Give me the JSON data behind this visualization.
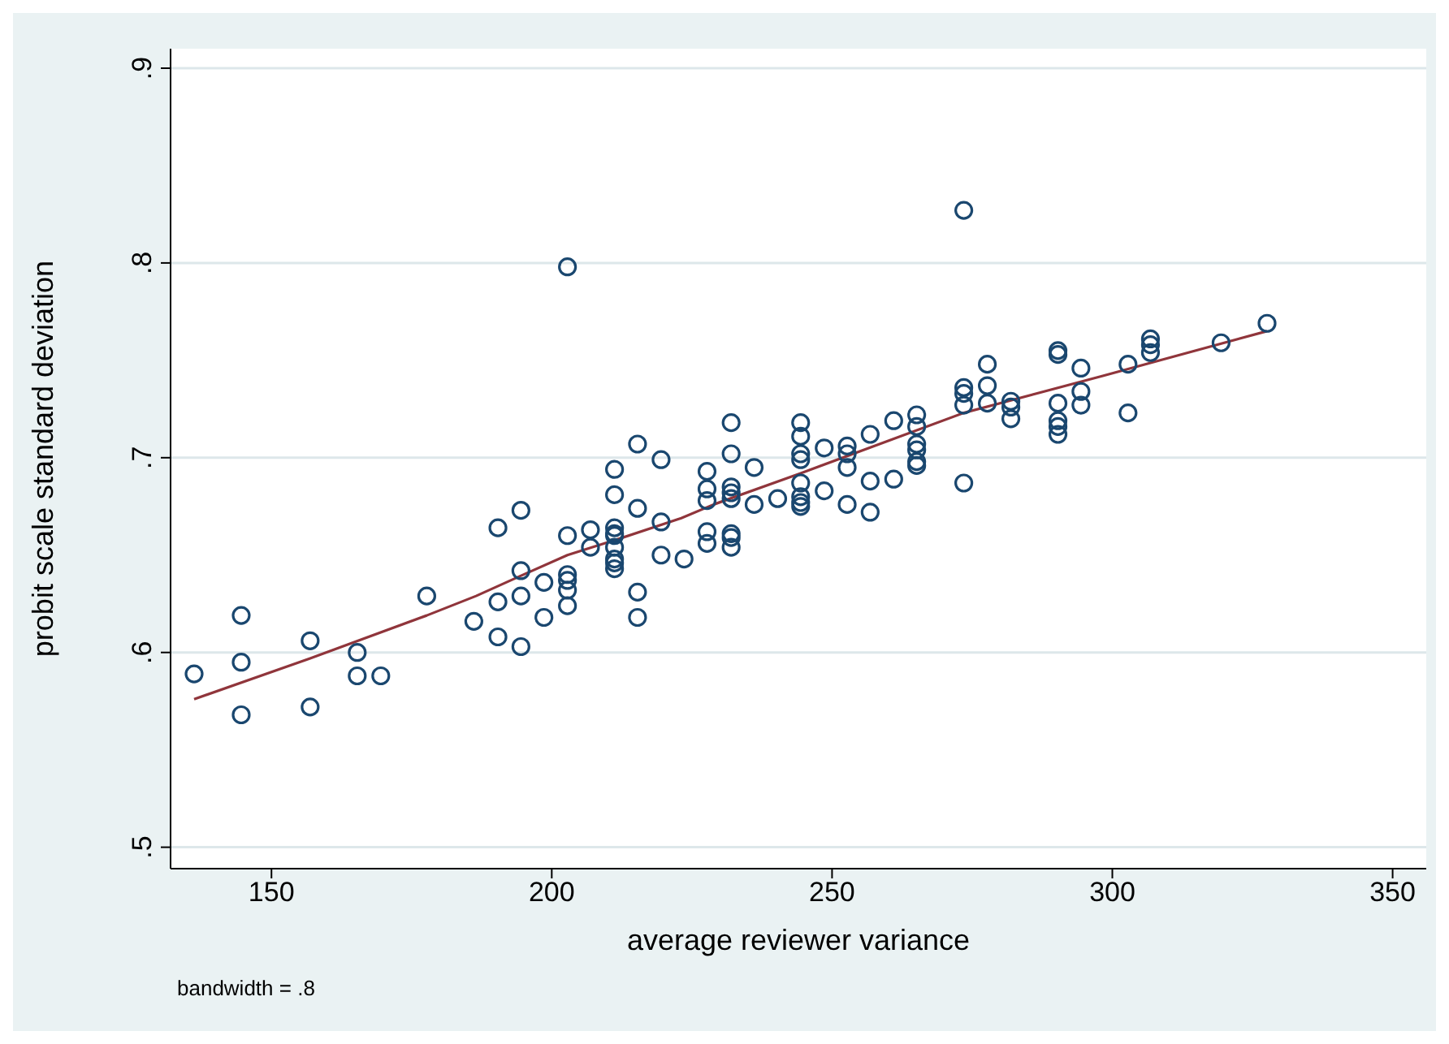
{
  "chart_data": {
    "type": "scatter",
    "xlabel": "average reviewer variance",
    "ylabel": "probit scale standard deviation",
    "annotations": [
      "bandwidth = .8"
    ],
    "xlim": [
      132,
      356
    ],
    "ylim": [
      0.489,
      0.91
    ],
    "xticks": [
      150,
      200,
      250,
      300,
      350
    ],
    "yticks": [
      {
        "value": 0.5,
        "label": ".5"
      },
      {
        "value": 0.6,
        "label": ".6"
      },
      {
        "value": 0.7,
        "label": ".7"
      },
      {
        "value": 0.8,
        "label": ".8"
      },
      {
        "value": 0.9,
        "label": ".9"
      }
    ],
    "grid": "y",
    "legend": false,
    "series": [
      {
        "marker": "circle",
        "color": "#1a476f",
        "x": [
          136.2,
          144.6,
          144.6,
          144.6,
          156.9,
          156.9,
          165.3,
          165.3,
          169.5,
          177.7,
          186.1,
          190.4,
          190.4,
          190.4,
          194.5,
          194.5,
          194.5,
          194.5,
          198.6,
          198.6,
          202.8,
          202.8,
          202.8,
          202.8,
          202.8,
          202.8,
          206.9,
          206.9,
          211.2,
          211.2,
          211.2,
          211.2,
          211.2,
          211.2,
          211.2,
          211.2,
          211.2,
          215.3,
          215.3,
          215.3,
          215.3,
          219.5,
          219.5,
          219.5,
          223.6,
          227.7,
          227.7,
          227.7,
          227.7,
          227.7,
          232.0,
          232.0,
          232.0,
          232.0,
          232.0,
          232.0,
          232.0,
          232.0,
          236.1,
          236.1,
          240.3,
          244.4,
          244.4,
          244.4,
          244.4,
          244.4,
          244.4,
          244.4,
          244.4,
          248.6,
          248.6,
          252.7,
          252.7,
          252.7,
          252.7,
          256.8,
          256.8,
          256.8,
          261.0,
          261.0,
          265.1,
          265.1,
          265.1,
          265.1,
          265.1,
          265.1,
          273.5,
          273.5,
          273.5,
          273.5,
          273.5,
          277.7,
          277.7,
          277.7,
          281.9,
          281.9,
          281.9,
          290.3,
          290.3,
          290.3,
          290.3,
          290.3,
          290.3,
          294.4,
          294.4,
          294.4,
          302.8,
          302.8,
          306.8,
          306.8,
          306.8,
          319.4,
          327.6
        ],
        "values": [
          0.589,
          0.619,
          0.595,
          0.568,
          0.606,
          0.572,
          0.6,
          0.588,
          0.588,
          0.629,
          0.616,
          0.664,
          0.626,
          0.608,
          0.673,
          0.642,
          0.629,
          0.603,
          0.636,
          0.618,
          0.798,
          0.66,
          0.64,
          0.637,
          0.632,
          0.624,
          0.663,
          0.654,
          0.694,
          0.681,
          0.664,
          0.661,
          0.66,
          0.654,
          0.648,
          0.646,
          0.643,
          0.707,
          0.674,
          0.631,
          0.618,
          0.699,
          0.667,
          0.65,
          0.648,
          0.693,
          0.684,
          0.678,
          0.662,
          0.656,
          0.718,
          0.702,
          0.685,
          0.682,
          0.679,
          0.661,
          0.659,
          0.654,
          0.695,
          0.676,
          0.679,
          0.718,
          0.711,
          0.702,
          0.699,
          0.687,
          0.68,
          0.677,
          0.675,
          0.705,
          0.683,
          0.706,
          0.702,
          0.695,
          0.676,
          0.712,
          0.688,
          0.672,
          0.719,
          0.689,
          0.722,
          0.716,
          0.707,
          0.704,
          0.698,
          0.696,
          0.827,
          0.736,
          0.733,
          0.727,
          0.687,
          0.748,
          0.737,
          0.728,
          0.729,
          0.726,
          0.72,
          0.755,
          0.753,
          0.728,
          0.719,
          0.716,
          0.712,
          0.746,
          0.734,
          0.727,
          0.748,
          0.723,
          0.761,
          0.758,
          0.754,
          0.759,
          0.769
        ]
      },
      {
        "type": "line",
        "color": "#90353b",
        "x": [
          136.2,
          156.9,
          177.7,
          186.5,
          194.2,
          202.8,
          211.6,
          223.1,
          228.9,
          244.4,
          273.5,
          298.3,
          327.6
        ],
        "values": [
          0.576,
          0.597,
          0.619,
          0.629,
          0.639,
          0.65,
          0.658,
          0.669,
          0.676,
          0.692,
          0.723,
          0.742,
          0.765
        ]
      }
    ]
  }
}
